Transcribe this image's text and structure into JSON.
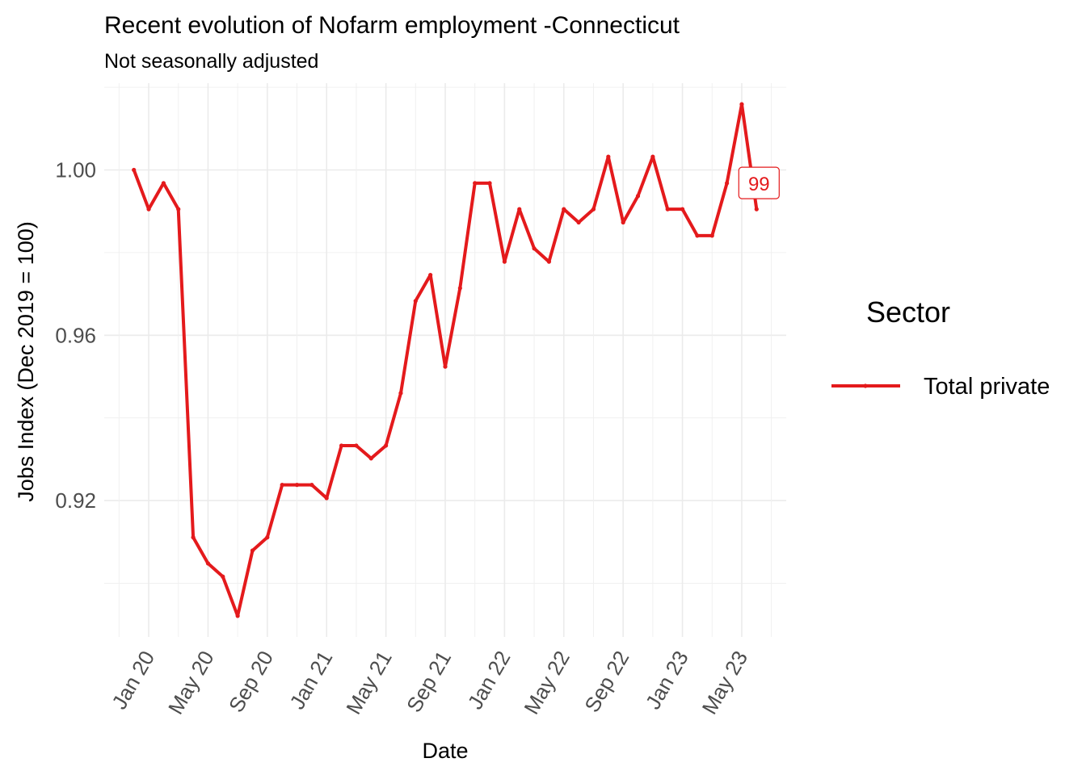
{
  "chart_data": {
    "type": "line",
    "title": "Recent evolution of Nofarm employment -Connecticut",
    "subtitle": "Not seasonally adjusted",
    "xlabel": "Date",
    "ylabel": "Jobs Index (Dec 2019 = 100)",
    "x_ticks": [
      "Jan 20",
      "May 20",
      "Sep 20",
      "Jan 21",
      "May 21",
      "Sep 21",
      "Jan 22",
      "May 22",
      "Sep 22",
      "Jan 23",
      "May 23"
    ],
    "y_ticks": [
      "0.92",
      "0.96",
      "1.00"
    ],
    "ylim": [
      0.887,
      1.021
    ],
    "xlim": [
      "2019-10",
      "2023-08"
    ],
    "grid": true,
    "legend": {
      "title": "Sector",
      "position": "right"
    },
    "series": [
      {
        "name": "Total private",
        "color": "#e41a1c",
        "x": [
          "2019-12",
          "2020-01",
          "2020-02",
          "2020-03",
          "2020-04",
          "2020-05",
          "2020-06",
          "2020-07",
          "2020-08",
          "2020-09",
          "2020-10",
          "2020-11",
          "2020-12",
          "2021-01",
          "2021-02",
          "2021-03",
          "2021-04",
          "2021-05",
          "2021-06",
          "2021-07",
          "2021-08",
          "2021-09",
          "2021-10",
          "2021-11",
          "2021-12",
          "2022-01",
          "2022-02",
          "2022-03",
          "2022-04",
          "2022-05",
          "2022-06",
          "2022-07",
          "2022-08",
          "2022-09",
          "2022-10",
          "2022-11",
          "2022-12",
          "2023-01",
          "2023-02",
          "2023-03",
          "2023-04",
          "2023-05",
          "2023-06"
        ],
        "values": [
          1.0,
          0.9905,
          0.9968,
          0.9905,
          0.9111,
          0.9048,
          0.9016,
          0.8921,
          0.9079,
          0.9111,
          0.9238,
          0.9238,
          0.9238,
          0.9206,
          0.9333,
          0.9333,
          0.9302,
          0.9333,
          0.946,
          0.9683,
          0.9746,
          0.9524,
          0.9714,
          0.9968,
          0.9968,
          0.9778,
          0.9905,
          0.981,
          0.9778,
          0.9905,
          0.9873,
          0.9905,
          1.0032,
          0.9873,
          0.9937,
          1.0032,
          0.9905,
          0.9905,
          0.9841,
          0.9841,
          0.9968,
          1.0159,
          0.9905
        ]
      }
    ],
    "annotations": [
      {
        "text": "99",
        "x": "2023-06",
        "y": 0.9905
      }
    ]
  }
}
